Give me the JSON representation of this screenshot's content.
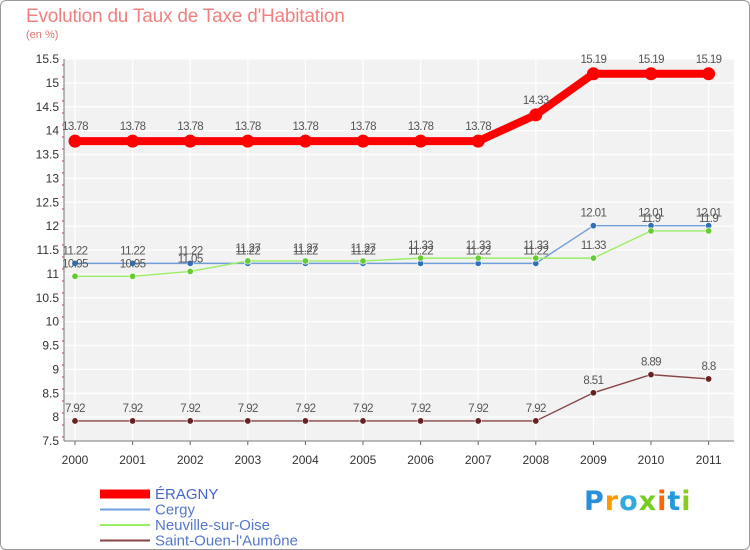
{
  "chart_data": {
    "type": "line",
    "title": "Evolution du Taux de Taxe d'Habitation",
    "ylabel": "(en %)",
    "xlabel": "",
    "x": [
      "2000",
      "2001",
      "2002",
      "2003",
      "2004",
      "2005",
      "2006",
      "2007",
      "2008",
      "2009",
      "2010",
      "2011"
    ],
    "ylim": [
      7.5,
      15.5
    ],
    "yticks": [
      7.5,
      8,
      8.5,
      9,
      9.5,
      10,
      10.5,
      11,
      11.5,
      12,
      12.5,
      13,
      13.5,
      14,
      14.5,
      15,
      15.5
    ],
    "grid": true,
    "series": [
      {
        "name": "ÉRAGNY",
        "color": "#ff0000",
        "style": "thick",
        "values": [
          13.78,
          13.78,
          13.78,
          13.78,
          13.78,
          13.78,
          13.78,
          13.78,
          14.33,
          15.19,
          15.19,
          15.19
        ],
        "labels": [
          "13.78",
          "13.78",
          "13.78",
          "13.78",
          "13.78",
          "13.78",
          "13.78",
          "13.78",
          "14.33",
          "15.19",
          "15.19",
          "15.19"
        ]
      },
      {
        "name": "Cergy",
        "color": "#6f9fd8",
        "marker": "#2f6fb8",
        "style": "thin",
        "values": [
          11.22,
          11.22,
          11.22,
          11.22,
          11.22,
          11.22,
          11.22,
          11.22,
          11.22,
          12.01,
          12.01,
          12.01
        ],
        "labels": [
          "11.22",
          "11.22",
          "11.22",
          "11.22",
          "11.22",
          "11.22",
          "11.22",
          "11.22",
          "11.22",
          "12.01",
          "12.01",
          "12.01"
        ]
      },
      {
        "name": "Neuville-sur-Oise",
        "color": "#99ee66",
        "marker": "#66cc33",
        "style": "thin",
        "values": [
          10.95,
          10.95,
          11.05,
          11.27,
          11.27,
          11.27,
          11.33,
          11.33,
          11.33,
          11.33,
          11.9,
          11.9
        ],
        "labels": [
          "10.95",
          "10.95",
          "11.05",
          "11.27",
          "11.27",
          "11.27",
          "11.33",
          "11.33",
          "11.33",
          "11.33",
          "11.9",
          "11.9"
        ]
      },
      {
        "name": "Saint-Ouen-l'Aumône",
        "color": "#884444",
        "marker": "#662222",
        "style": "thin",
        "values": [
          7.92,
          7.92,
          7.92,
          7.92,
          7.92,
          7.92,
          7.92,
          7.92,
          7.92,
          8.51,
          8.89,
          8.8
        ],
        "labels": [
          "7.92",
          "7.92",
          "7.92",
          "7.92",
          "7.92",
          "7.92",
          "7.92",
          "7.92",
          "7.92",
          "8.51",
          "8.89",
          "8.8"
        ]
      }
    ],
    "legend": "bottom-left"
  },
  "logo": {
    "text": "Proxiti",
    "letters": [
      {
        "ch": "P",
        "color": "#2a8fd8"
      },
      {
        "ch": "r",
        "color": "#ff9900"
      },
      {
        "ch": "o",
        "color": "#33aadd"
      },
      {
        "ch": "x",
        "color": "#77cc22"
      },
      {
        "ch": "i",
        "color": "#ff6600"
      },
      {
        "ch": "t",
        "color": "#2299dd"
      },
      {
        "ch": "i",
        "color": "#88cc22"
      }
    ]
  }
}
